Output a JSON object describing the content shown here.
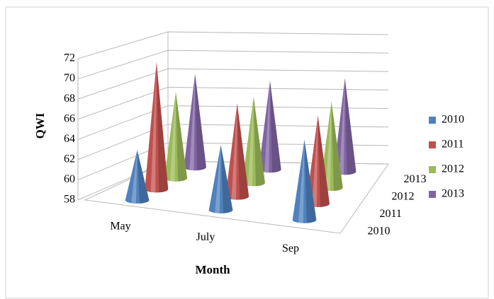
{
  "chart_data": {
    "type": "cone3d",
    "y_label": "QWI",
    "x_label": "Month",
    "categories": [
      "May",
      "July",
      "Sep"
    ],
    "series": [
      {
        "name": "2010",
        "color": "#4f81bd",
        "values": [
          63,
          64.5,
          66
        ]
      },
      {
        "name": "2011",
        "color": "#c0504d",
        "values": [
          71,
          67.5,
          67
        ]
      },
      {
        "name": "2012",
        "color": "#9bbb59",
        "values": [
          67,
          67,
          67
        ]
      },
      {
        "name": "2013",
        "color": "#8064a2",
        "values": [
          68,
          67.5,
          68
        ]
      }
    ],
    "ylim": [
      58,
      72
    ],
    "yticks": [
      58,
      60,
      62,
      64,
      66,
      68,
      70,
      72
    ],
    "grid": true,
    "legend": "right"
  }
}
